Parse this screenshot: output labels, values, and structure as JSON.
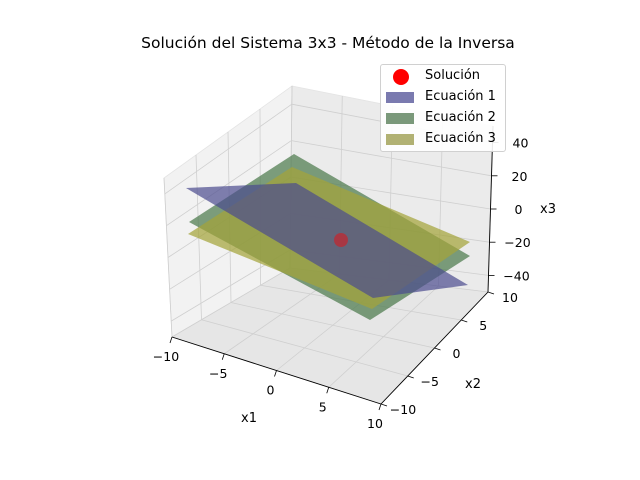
{
  "chart_data": {
    "type": "3d-surface",
    "title": "Solución del Sistema 3x3 - Método de la Inversa",
    "xlabel": "x1",
    "ylabel": "x2",
    "zlabel": "x3",
    "xlim": [
      -10,
      10
    ],
    "ylim": [
      -10,
      10
    ],
    "zlim": [
      -50,
      50
    ],
    "x_ticks": [
      -10,
      -5,
      0,
      5,
      10
    ],
    "y_ticks": [
      -10,
      -5,
      0,
      5,
      10
    ],
    "z_ticks": [
      -40,
      -20,
      0,
      20,
      40
    ],
    "grid": true,
    "legend_position": "top-right",
    "series": [
      {
        "name": "Solución",
        "kind": "point",
        "color": "#ff0000"
      },
      {
        "name": "Ecuación 1",
        "kind": "plane",
        "color": "#4b4b8f"
      },
      {
        "name": "Ecuación 2",
        "kind": "plane",
        "color": "#4c7a4c"
      },
      {
        "name": "Ecuación 3",
        "kind": "plane",
        "color": "#a3a33a"
      }
    ]
  }
}
